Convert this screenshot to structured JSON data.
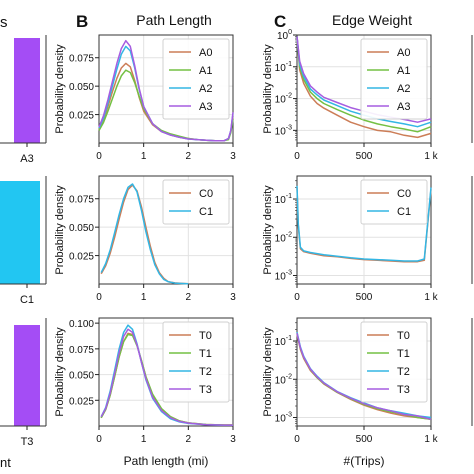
{
  "colors": {
    "brown": "#cc7d57",
    "green": "#74c043",
    "blue": "#33b6e4",
    "purple": "#a65de0",
    "cyan_bar": "#22c6f2",
    "purple_bar": "#a44df5",
    "grid": "#e2e2e2",
    "axis": "#222222",
    "panel_border": "#333333"
  },
  "panel_letters": {
    "B": "B",
    "C": "C"
  },
  "left_column": {
    "title_fragment": "s",
    "bottom_label": "nt",
    "bars": [
      {
        "label": "A3",
        "color": "purple_bar"
      },
      {
        "label": "C1",
        "color": "cyan_bar"
      },
      {
        "label": "T3",
        "color": "purple_bar"
      }
    ]
  },
  "chart_data": [
    {
      "type": "line",
      "panel": "B-top",
      "title": "Path Length",
      "ylabel": "Probability density",
      "xlim": [
        0,
        3
      ],
      "ylim": [
        0,
        0.095
      ],
      "xticks": [
        "0",
        "1",
        "2",
        "3"
      ],
      "yticks": [
        "0.025",
        "0.050",
        "0.075"
      ],
      "legend_position": "top-right",
      "x": [
        0,
        0.1,
        0.2,
        0.3,
        0.4,
        0.5,
        0.6,
        0.7,
        0.8,
        0.9,
        1.0,
        1.2,
        1.4,
        1.6,
        1.8,
        2.0,
        2.2,
        2.4,
        2.6,
        2.8,
        2.9,
        2.95,
        3.0
      ],
      "series": [
        {
          "name": "A0",
          "color": "brown",
          "values": [
            0.012,
            0.02,
            0.032,
            0.045,
            0.057,
            0.066,
            0.07,
            0.067,
            0.055,
            0.04,
            0.028,
            0.016,
            0.01,
            0.007,
            0.005,
            0.004,
            0.003,
            0.0025,
            0.002,
            0.002,
            0.004,
            0.01,
            0.024
          ]
        },
        {
          "name": "A1",
          "color": "green",
          "values": [
            0.011,
            0.018,
            0.028,
            0.039,
            0.05,
            0.059,
            0.064,
            0.062,
            0.053,
            0.041,
            0.03,
            0.017,
            0.011,
            0.008,
            0.006,
            0.004,
            0.003,
            0.0025,
            0.002,
            0.002,
            0.003,
            0.009,
            0.021
          ]
        },
        {
          "name": "A2",
          "color": "blue",
          "values": [
            0.013,
            0.022,
            0.035,
            0.05,
            0.065,
            0.078,
            0.085,
            0.081,
            0.066,
            0.047,
            0.032,
            0.017,
            0.01,
            0.007,
            0.005,
            0.0035,
            0.003,
            0.0025,
            0.002,
            0.002,
            0.004,
            0.011,
            0.026
          ]
        },
        {
          "name": "A3",
          "color": "purple",
          "values": [
            0.014,
            0.024,
            0.038,
            0.054,
            0.07,
            0.083,
            0.09,
            0.085,
            0.068,
            0.048,
            0.032,
            0.017,
            0.01,
            0.007,
            0.005,
            0.0035,
            0.003,
            0.0025,
            0.002,
            0.002,
            0.004,
            0.011,
            0.027
          ]
        }
      ]
    },
    {
      "type": "line",
      "panel": "B-mid",
      "ylabel": "Probability density",
      "xlim": [
        0,
        3
      ],
      "ylim": [
        0,
        0.095
      ],
      "xticks": [
        "0",
        "1",
        "2",
        "3"
      ],
      "yticks": [
        "0.025",
        "0.050",
        "0.075"
      ],
      "legend_position": "top-right",
      "x": [
        0.05,
        0.15,
        0.25,
        0.35,
        0.45,
        0.55,
        0.65,
        0.75,
        0.85,
        0.95,
        1.05,
        1.15,
        1.25,
        1.35,
        1.45,
        1.55,
        1.7,
        1.85,
        2.0
      ],
      "series": [
        {
          "name": "C0",
          "color": "brown",
          "values": [
            0.009,
            0.016,
            0.027,
            0.041,
            0.057,
            0.072,
            0.083,
            0.087,
            0.082,
            0.068,
            0.05,
            0.033,
            0.019,
            0.01,
            0.005,
            0.002,
            0.001,
            0.0005,
            0.0002
          ]
        },
        {
          "name": "C1",
          "color": "blue",
          "values": [
            0.01,
            0.018,
            0.03,
            0.045,
            0.061,
            0.075,
            0.085,
            0.088,
            0.081,
            0.065,
            0.046,
            0.03,
            0.017,
            0.009,
            0.004,
            0.002,
            0.0008,
            0.0004,
            0.0002
          ]
        }
      ]
    },
    {
      "type": "line",
      "panel": "B-bottom",
      "ylabel": "Probability density",
      "xlabel": "Path length (mi)",
      "xlim": [
        0,
        3
      ],
      "ylim": [
        0,
        0.105
      ],
      "xticks": [
        "0",
        "1",
        "2",
        "3"
      ],
      "yticks": [
        "0.025",
        "0.050",
        "0.075",
        "0.100"
      ],
      "legend_position": "top-right",
      "x": [
        0.05,
        0.15,
        0.25,
        0.35,
        0.45,
        0.55,
        0.65,
        0.75,
        0.85,
        0.95,
        1.05,
        1.2,
        1.4,
        1.6,
        1.8,
        2.0,
        2.4,
        2.8,
        3.0
      ],
      "series": [
        {
          "name": "T0",
          "color": "brown",
          "values": [
            0.008,
            0.016,
            0.03,
            0.048,
            0.067,
            0.082,
            0.09,
            0.089,
            0.079,
            0.064,
            0.048,
            0.03,
            0.016,
            0.009,
            0.005,
            0.003,
            0.0015,
            0.001,
            0.001
          ]
        },
        {
          "name": "T1",
          "color": "green",
          "values": [
            0.008,
            0.016,
            0.03,
            0.048,
            0.067,
            0.082,
            0.089,
            0.088,
            0.078,
            0.064,
            0.048,
            0.031,
            0.017,
            0.009,
            0.005,
            0.003,
            0.0015,
            0.001,
            0.001
          ]
        },
        {
          "name": "T2",
          "color": "blue",
          "values": [
            0.009,
            0.018,
            0.034,
            0.054,
            0.075,
            0.091,
            0.098,
            0.094,
            0.08,
            0.062,
            0.045,
            0.027,
            0.014,
            0.007,
            0.004,
            0.0025,
            0.0012,
            0.0008,
            0.0008
          ]
        },
        {
          "name": "T3",
          "color": "purple",
          "values": [
            0.009,
            0.017,
            0.032,
            0.051,
            0.071,
            0.087,
            0.094,
            0.091,
            0.079,
            0.062,
            0.046,
            0.028,
            0.015,
            0.008,
            0.0045,
            0.0028,
            0.0013,
            0.0009,
            0.0009
          ]
        }
      ]
    },
    {
      "type": "line",
      "panel": "C-top",
      "title": "Edge Weight",
      "ylabel": "Probability density",
      "yscale": "log",
      "xlim": [
        0,
        1000
      ],
      "ylim": [
        0.0004,
        1
      ],
      "xticks": [
        "0",
        "500",
        "1 k"
      ],
      "yticks": [
        "10^0",
        "10^-1",
        "10^-2",
        "10^-3"
      ],
      "legend_position": "top-right",
      "x": [
        0,
        20,
        50,
        100,
        150,
        200,
        300,
        400,
        500,
        600,
        700,
        800,
        900,
        1000
      ],
      "series": [
        {
          "name": "A0",
          "color": "brown",
          "values": [
            0.9,
            0.08,
            0.03,
            0.012,
            0.007,
            0.005,
            0.003,
            0.0018,
            0.0013,
            0.001,
            0.0009,
            0.0007,
            0.0006,
            0.0008
          ]
        },
        {
          "name": "A1",
          "color": "green",
          "values": [
            0.9,
            0.1,
            0.04,
            0.016,
            0.01,
            0.007,
            0.0045,
            0.003,
            0.0021,
            0.0016,
            0.0013,
            0.0011,
            0.0009,
            0.0013
          ]
        },
        {
          "name": "A2",
          "color": "blue",
          "values": [
            0.9,
            0.12,
            0.05,
            0.02,
            0.013,
            0.009,
            0.006,
            0.004,
            0.003,
            0.0023,
            0.0019,
            0.0016,
            0.0013,
            0.0018
          ]
        },
        {
          "name": "A3",
          "color": "purple",
          "values": [
            0.9,
            0.15,
            0.06,
            0.025,
            0.016,
            0.011,
            0.0075,
            0.0052,
            0.004,
            0.0031,
            0.0026,
            0.0022,
            0.0018,
            0.0023
          ]
        }
      ]
    },
    {
      "type": "line",
      "panel": "C-mid",
      "ylabel": "Probability density",
      "yscale": "log",
      "xlim": [
        0,
        1000
      ],
      "ylim": [
        0.0006,
        0.4
      ],
      "xticks": [
        "0",
        "500",
        "1 k"
      ],
      "yticks": [
        "10^-1",
        "10^-2",
        "10^-3"
      ],
      "legend_position": "top-right",
      "x": [
        0,
        10,
        25,
        50,
        100,
        200,
        300,
        400,
        500,
        600,
        700,
        800,
        900,
        950,
        1000
      ],
      "series": [
        {
          "name": "C0",
          "color": "brown",
          "values": [
            0.2,
            0.02,
            0.005,
            0.0042,
            0.0038,
            0.0033,
            0.0031,
            0.0028,
            0.0026,
            0.0025,
            0.0024,
            0.0023,
            0.0023,
            0.0025,
            0.18
          ]
        },
        {
          "name": "C1",
          "color": "blue",
          "values": [
            0.22,
            0.022,
            0.0055,
            0.0044,
            0.004,
            0.0035,
            0.0032,
            0.0029,
            0.0027,
            0.0026,
            0.0025,
            0.0024,
            0.0024,
            0.0027,
            0.2
          ]
        }
      ]
    },
    {
      "type": "line",
      "panel": "C-bottom",
      "ylabel": "Probability density",
      "xlabel": "#(Trips)",
      "yscale": "log",
      "xlim": [
        0,
        1000
      ],
      "ylim": [
        0.0006,
        0.4
      ],
      "xticks": [
        "0",
        "500",
        "1 k"
      ],
      "yticks": [
        "10^-1",
        "10^-2",
        "10^-3"
      ],
      "legend_position": "top-right",
      "x": [
        0,
        25,
        50,
        100,
        150,
        200,
        300,
        400,
        500,
        600,
        700,
        800,
        900,
        1000
      ],
      "series": [
        {
          "name": "T0",
          "color": "brown",
          "values": [
            0.15,
            0.06,
            0.035,
            0.017,
            0.011,
            0.0075,
            0.0045,
            0.003,
            0.0021,
            0.0016,
            0.0013,
            0.0011,
            0.001,
            0.0009
          ]
        },
        {
          "name": "T1",
          "color": "green",
          "values": [
            0.16,
            0.065,
            0.037,
            0.018,
            0.011,
            0.0078,
            0.0046,
            0.0031,
            0.0022,
            0.0017,
            0.0014,
            0.0012,
            0.001,
            0.0009
          ]
        },
        {
          "name": "T2",
          "color": "blue",
          "values": [
            0.17,
            0.07,
            0.04,
            0.019,
            0.012,
            0.0082,
            0.0048,
            0.0033,
            0.0024,
            0.0018,
            0.0015,
            0.0013,
            0.0011,
            0.001
          ]
        },
        {
          "name": "T3",
          "color": "purple",
          "values": [
            0.16,
            0.066,
            0.038,
            0.0185,
            0.0115,
            0.008,
            0.0047,
            0.0032,
            0.0023,
            0.0018,
            0.0015,
            0.0012,
            0.0011,
            0.0009
          ]
        }
      ]
    }
  ]
}
